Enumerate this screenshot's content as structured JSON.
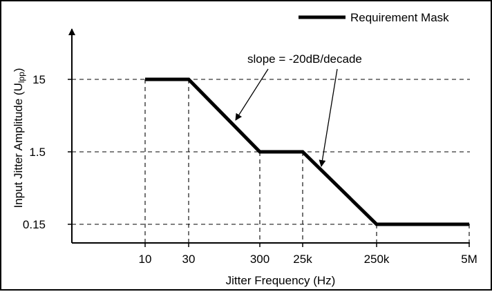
{
  "chart_data": {
    "type": "line",
    "ylabel_main": "Input Jitter Amplitude (U",
    "ylabel_sub": "lpp",
    "ylabel_close": ")",
    "xlabel": "Jitter Frequency (Hz)",
    "x_tick_labels": [
      "10",
      "30",
      "300",
      "25k",
      "250k",
      "5M"
    ],
    "y_tick_labels": [
      "0.15",
      "1.5",
      "15"
    ],
    "series": [
      {
        "name": "Requirement Mask",
        "color": "#000000",
        "points": [
          {
            "x": "10",
            "y": 15
          },
          {
            "x": "30",
            "y": 15
          },
          {
            "x": "300",
            "y": 1.5
          },
          {
            "x": "25k",
            "y": 1.5
          },
          {
            "x": "250k",
            "y": 0.15
          },
          {
            "x": "5M",
            "y": 0.15
          }
        ]
      }
    ],
    "annotation": "slope = -20dB/decade",
    "grid": "dashed",
    "legend_position": "top-right"
  }
}
